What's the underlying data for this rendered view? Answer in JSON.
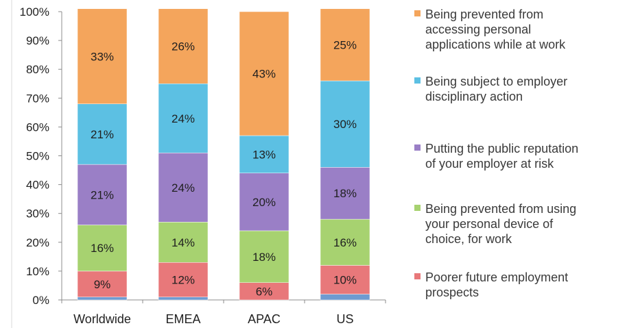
{
  "chart_data": {
    "type": "bar",
    "stacked": true,
    "categories": [
      "Worldwide",
      "EMEA",
      "APAC",
      "US"
    ],
    "yticks": [
      "0%",
      "10%",
      "20%",
      "30%",
      "40%",
      "50%",
      "60%",
      "70%",
      "80%",
      "90%",
      "100%"
    ],
    "ylim": [
      0,
      100
    ],
    "series": [
      {
        "key": "other",
        "color": "#6f9bd1",
        "values": [
          1,
          1,
          0,
          2
        ],
        "labels": [
          "",
          "",
          "",
          ""
        ]
      },
      {
        "key": "poorer",
        "name": "Poorer future employment prospects",
        "color": "#e8787a",
        "values": [
          9,
          12,
          6,
          10
        ],
        "labels": [
          "9%",
          "12%",
          "6%",
          "10%"
        ]
      },
      {
        "key": "device",
        "name": "Being prevented from using your personal device of choice, for work",
        "color": "#a7d270",
        "values": [
          16,
          14,
          18,
          16
        ],
        "labels": [
          "16%",
          "14%",
          "18%",
          "16%"
        ]
      },
      {
        "key": "reputation",
        "name": "Putting the public reputation of your employer at risk",
        "color": "#9a7fc6",
        "values": [
          21,
          24,
          20,
          18
        ],
        "labels": [
          "21%",
          "24%",
          "20%",
          "18%"
        ]
      },
      {
        "key": "disciplinary",
        "name": "Being subject to employer disciplinary action",
        "color": "#5cc0e3",
        "values": [
          21,
          24,
          13,
          30
        ],
        "labels": [
          "21%",
          "24%",
          "13%",
          "30%"
        ]
      },
      {
        "key": "apps",
        "name": "Being prevented from accessing personal applications while at work",
        "color": "#f4a55c",
        "values": [
          33,
          26,
          43,
          25
        ],
        "labels": [
          "33%",
          "26%",
          "43%",
          "25%"
        ]
      }
    ],
    "legend": {
      "position": "right",
      "items": [
        {
          "lines": [
            "Being prevented from",
            "accessing personal",
            "applications while at work"
          ],
          "color": "#f4a55c"
        },
        {
          "lines": [
            "Being subject to employer",
            "disciplinary action"
          ],
          "color": "#5cc0e3"
        },
        {
          "lines": [
            "Putting the public reputation",
            "of your employer at risk"
          ],
          "color": "#9a7fc6"
        },
        {
          "lines": [
            "Being prevented from using",
            "your personal device of",
            "choice, for work"
          ],
          "color": "#a7d270"
        },
        {
          "lines": [
            "Poorer future employment",
            "prospects"
          ],
          "color": "#e8787a"
        }
      ]
    },
    "grid": false
  }
}
